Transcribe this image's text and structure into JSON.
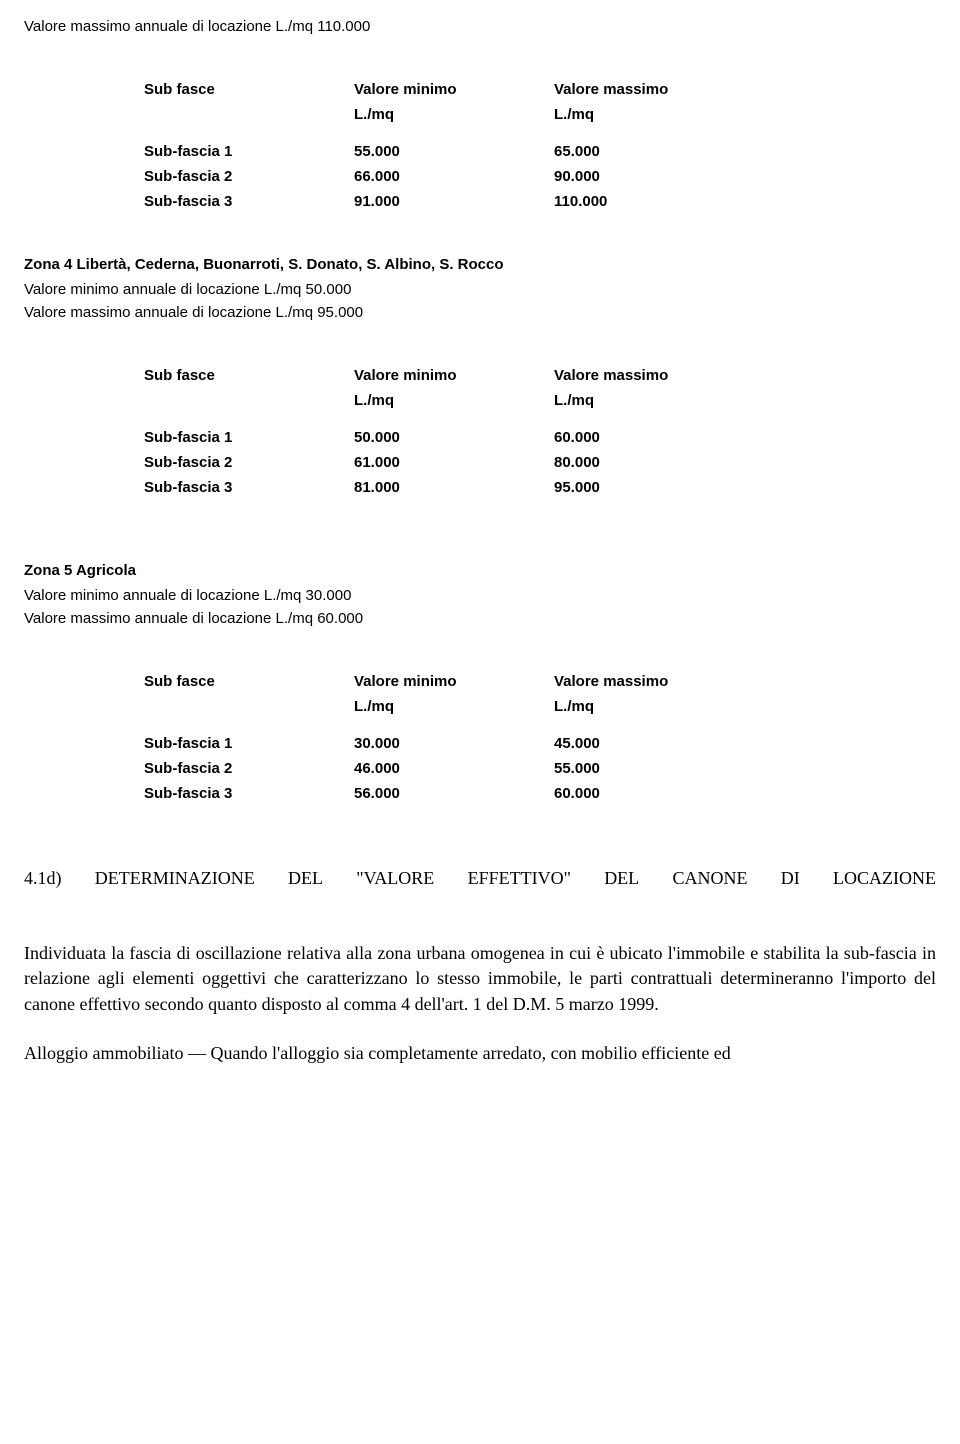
{
  "top_line": "Valore massimo annuale di locazione L./mq 110.000",
  "table_headers": {
    "col1": "Sub fasce",
    "col2": "Valore minimo",
    "col3": "Valore massimo",
    "unit": "L./mq"
  },
  "table1": {
    "rows": [
      {
        "label": "Sub-fascia 1",
        "min": "55.000",
        "max": "65.000"
      },
      {
        "label": "Sub-fascia 2",
        "min": "66.000",
        "max": "90.000"
      },
      {
        "label": "Sub-fascia 3",
        "min": "91.000",
        "max": "110.000"
      }
    ]
  },
  "zone4": {
    "title": "Zona 4 Libertà, Cederna, Buonarroti, S. Donato, S. Albino, S. Rocco",
    "min_text": "Valore minimo annuale di locazione L./mq 50.000",
    "max_text": "Valore massimo annuale di locazione L./mq 95.000"
  },
  "table2": {
    "rows": [
      {
        "label": "Sub-fascia 1",
        "min": "50.000",
        "max": "60.000"
      },
      {
        "label": "Sub-fascia 2",
        "min": "61.000",
        "max": "80.000"
      },
      {
        "label": "Sub-fascia 3",
        "min": "81.000",
        "max": "95.000"
      }
    ]
  },
  "zone5": {
    "title": "Zona 5 Agricola",
    "min_text": "Valore minimo annuale di locazione L./mq 30.000",
    "max_text": "Valore massimo annuale di locazione L./mq 60.000"
  },
  "table3": {
    "rows": [
      {
        "label": "Sub-fascia 1",
        "min": "30.000",
        "max": "45.000"
      },
      {
        "label": "Sub-fascia 2",
        "min": "46.000",
        "max": "55.000"
      },
      {
        "label": "Sub-fascia 3",
        "min": "56.000",
        "max": "60.000"
      }
    ]
  },
  "section4d": {
    "w1": "4.1d)",
    "w2": "DETERMINAZIONE",
    "w3": "DEL",
    "w4": "\"VALORE",
    "w5": "EFFETTIVO\"",
    "w6": "DEL",
    "w7": "CANONE",
    "w8": "DI",
    "w9": "LOCAZIONE"
  },
  "para1": "Individuata la fascia di oscillazione relativa alla zona urbana omogenea in cui è ubicato l'immobile e stabilita la sub-fascia in relazione agli elementi oggettivi che caratterizzano lo stesso immobile, le parti contrattuali determineranno l'importo del canone effettivo secondo quanto disposto al comma 4 dell'art. 1 del D.M. 5 marzo 1999.",
  "para2": "Alloggio ammobiliato — Quando l'alloggio sia completamente arredato, con mobilio efficiente ed"
}
